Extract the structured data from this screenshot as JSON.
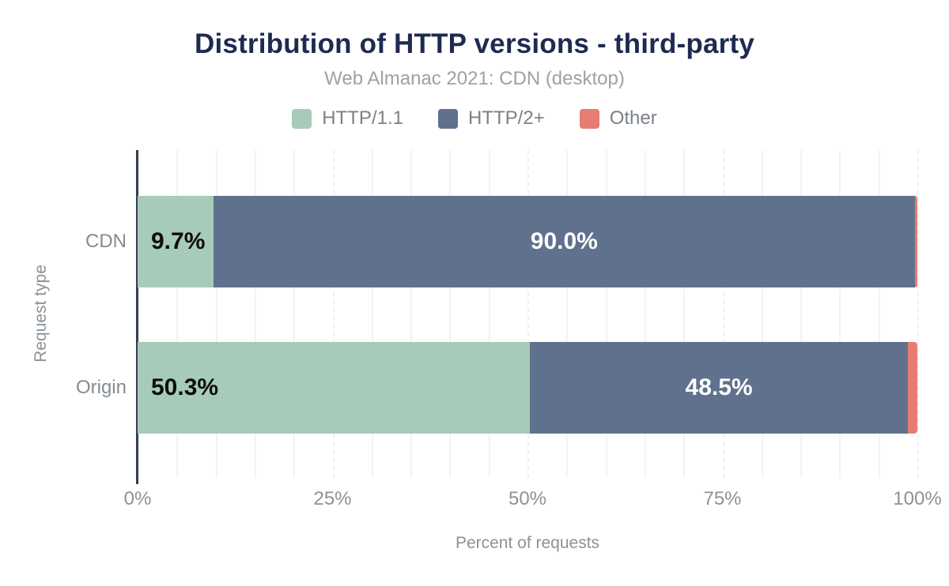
{
  "header": {
    "title": "Distribution of HTTP versions - third-party",
    "subtitle": "Web Almanac 2021: CDN (desktop)"
  },
  "colors": {
    "title_text": "#1e2b4f",
    "subtitle_text": "#9aa2a9",
    "legend_text": "#7a8187",
    "axis_text": "#8b9299",
    "axis_line": "#333e4e",
    "gridline": "#f1f3f4",
    "label_dark": "#0d0d0d",
    "label_light": "#ffffff"
  },
  "chart_data": {
    "type": "bar",
    "orientation": "horizontal",
    "stacked": true,
    "title": "Distribution of HTTP versions - third-party",
    "subtitle": "Web Almanac 2021: CDN (desktop)",
    "categories": [
      "CDN",
      "Origin"
    ],
    "series": [
      {
        "name": "HTTP/1.1",
        "color": "#a7cbba",
        "values": [
          9.7,
          50.3
        ],
        "labels": [
          "9.7%",
          "50.3%"
        ]
      },
      {
        "name": "HTTP/2+",
        "color": "#5f718c",
        "values": [
          90.0,
          48.5
        ],
        "labels": [
          "90.0%",
          "48.5%"
        ]
      },
      {
        "name": "Other",
        "color": "#e77c72",
        "values": [
          0.3,
          1.2
        ],
        "labels": [
          "",
          ""
        ]
      }
    ],
    "xlabel": "Percent of requests",
    "ylabel": "Request type",
    "xlim": [
      0,
      100
    ],
    "x_ticks": [
      {
        "value": 0,
        "label": "0%"
      },
      {
        "value": 25,
        "label": "25%"
      },
      {
        "value": 50,
        "label": "50%"
      },
      {
        "value": 75,
        "label": "75%"
      },
      {
        "value": 100,
        "label": "100%"
      }
    ],
    "minor_grid_step": 5,
    "grid": true,
    "legend_position": "top"
  }
}
